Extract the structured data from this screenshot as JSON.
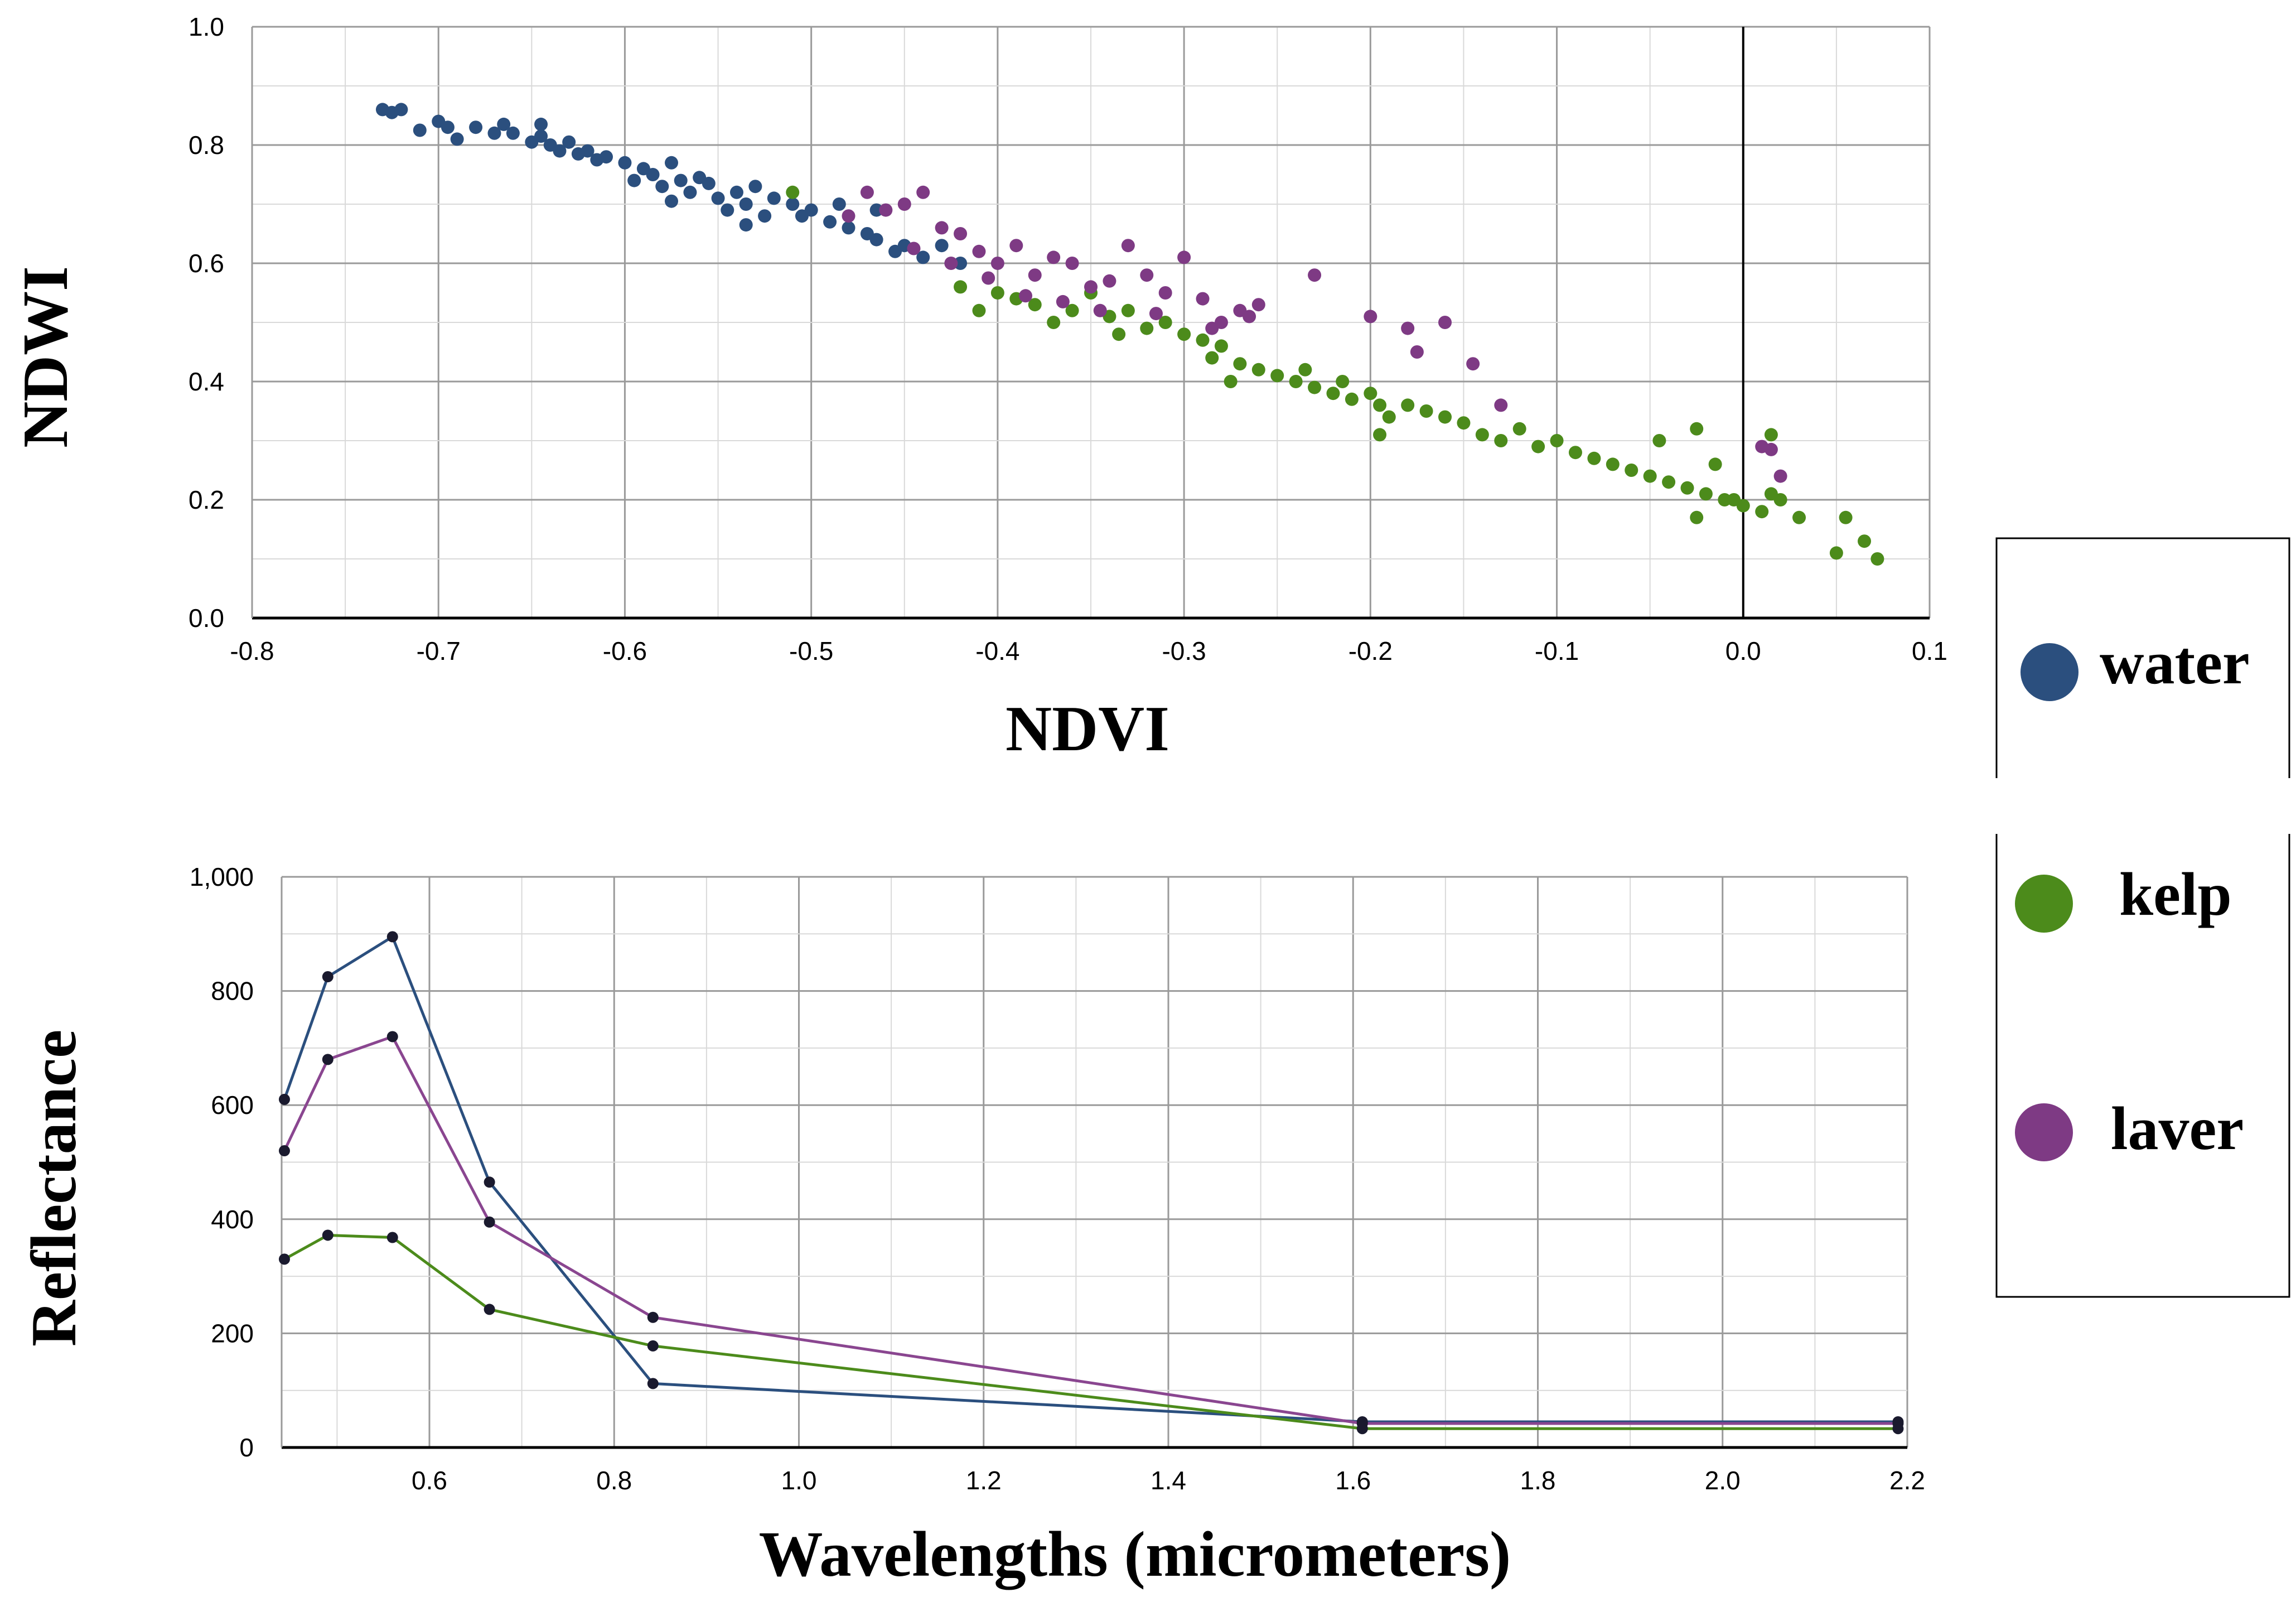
{
  "colors": {
    "water": "#2b4f7e",
    "kelp": "#4c8b1b",
    "laver": "#7e3a84",
    "laver_line": "#8a4690",
    "axis": "#000000",
    "grid_major": "#9a9a9a",
    "grid_minor": "#d9d9d9"
  },
  "legend": {
    "items": [
      {
        "key": "water",
        "label": "water",
        "color": "#2b4f7e"
      },
      {
        "key": "kelp",
        "label": "kelp",
        "color": "#4c8b1b"
      },
      {
        "key": "laver",
        "label": "laver",
        "color": "#7e3a84"
      }
    ]
  },
  "chart_data": [
    {
      "type": "scatter",
      "title": "",
      "xlabel": "NDVI",
      "ylabel": "NDWI",
      "xlim": [
        -0.8,
        0.1
      ],
      "ylim": [
        0.0,
        1.0
      ],
      "xticks": [
        -0.8,
        -0.7,
        -0.6,
        -0.5,
        -0.4,
        -0.3,
        -0.2,
        -0.1,
        0.0,
        0.1
      ],
      "xtick_labels": [
        "-0.8",
        "-0.7",
        "-0.6",
        "-0.5",
        "-0.4",
        "-0.3",
        "-0.2",
        "-0.1",
        "0.0",
        "0.1"
      ],
      "yticks": [
        0.0,
        0.2,
        0.4,
        0.6,
        0.8,
        1.0
      ],
      "ytick_labels": [
        "0.0",
        "0.2",
        "0.4",
        "0.6",
        "0.8",
        "1.0"
      ],
      "grid": true,
      "reference_line_x": 0.0,
      "series": [
        {
          "name": "water",
          "points": [
            [
              -0.73,
              0.86
            ],
            [
              -0.725,
              0.855
            ],
            [
              -0.72,
              0.86
            ],
            [
              -0.71,
              0.825
            ],
            [
              -0.7,
              0.84
            ],
            [
              -0.695,
              0.83
            ],
            [
              -0.69,
              0.81
            ],
            [
              -0.68,
              0.83
            ],
            [
              -0.67,
              0.82
            ],
            [
              -0.665,
              0.835
            ],
            [
              -0.66,
              0.82
            ],
            [
              -0.65,
              0.805
            ],
            [
              -0.645,
              0.815
            ],
            [
              -0.64,
              0.8
            ],
            [
              -0.635,
              0.79
            ],
            [
              -0.63,
              0.805
            ],
            [
              -0.625,
              0.785
            ],
            [
              -0.62,
              0.79
            ],
            [
              -0.615,
              0.775
            ],
            [
              -0.61,
              0.78
            ],
            [
              -0.6,
              0.77
            ],
            [
              -0.595,
              0.74
            ],
            [
              -0.59,
              0.76
            ],
            [
              -0.585,
              0.75
            ],
            [
              -0.58,
              0.73
            ],
            [
              -0.575,
              0.77
            ],
            [
              -0.57,
              0.74
            ],
            [
              -0.565,
              0.72
            ],
            [
              -0.56,
              0.745
            ],
            [
              -0.555,
              0.735
            ],
            [
              -0.55,
              0.71
            ],
            [
              -0.545,
              0.69
            ],
            [
              -0.54,
              0.72
            ],
            [
              -0.535,
              0.7
            ],
            [
              -0.53,
              0.73
            ],
            [
              -0.525,
              0.68
            ],
            [
              -0.52,
              0.71
            ],
            [
              -0.51,
              0.7
            ],
            [
              -0.505,
              0.68
            ],
            [
              -0.5,
              0.69
            ],
            [
              -0.49,
              0.67
            ],
            [
              -0.485,
              0.7
            ],
            [
              -0.48,
              0.66
            ],
            [
              -0.47,
              0.65
            ],
            [
              -0.465,
              0.64
            ],
            [
              -0.455,
              0.62
            ],
            [
              -0.45,
              0.63
            ],
            [
              -0.44,
              0.61
            ],
            [
              -0.43,
              0.63
            ],
            [
              -0.42,
              0.6
            ],
            [
              -0.645,
              0.835
            ],
            [
              -0.575,
              0.705
            ],
            [
              -0.535,
              0.665
            ],
            [
              -0.465,
              0.69
            ]
          ]
        },
        {
          "name": "kelp",
          "points": [
            [
              -0.51,
              0.72
            ],
            [
              -0.42,
              0.56
            ],
            [
              -0.41,
              0.52
            ],
            [
              -0.4,
              0.55
            ],
            [
              -0.39,
              0.54
            ],
            [
              -0.38,
              0.53
            ],
            [
              -0.37,
              0.5
            ],
            [
              -0.36,
              0.52
            ],
            [
              -0.35,
              0.55
            ],
            [
              -0.34,
              0.51
            ],
            [
              -0.33,
              0.52
            ],
            [
              -0.32,
              0.49
            ],
            [
              -0.31,
              0.5
            ],
            [
              -0.3,
              0.48
            ],
            [
              -0.29,
              0.47
            ],
            [
              -0.285,
              0.44
            ],
            [
              -0.28,
              0.46
            ],
            [
              -0.27,
              0.43
            ],
            [
              -0.26,
              0.42
            ],
            [
              -0.25,
              0.41
            ],
            [
              -0.24,
              0.4
            ],
            [
              -0.235,
              0.42
            ],
            [
              -0.23,
              0.39
            ],
            [
              -0.22,
              0.38
            ],
            [
              -0.215,
              0.4
            ],
            [
              -0.21,
              0.37
            ],
            [
              -0.2,
              0.38
            ],
            [
              -0.195,
              0.36
            ],
            [
              -0.19,
              0.34
            ],
            [
              -0.18,
              0.36
            ],
            [
              -0.17,
              0.35
            ],
            [
              -0.16,
              0.34
            ],
            [
              -0.15,
              0.33
            ],
            [
              -0.14,
              0.31
            ],
            [
              -0.13,
              0.3
            ],
            [
              -0.12,
              0.32
            ],
            [
              -0.11,
              0.29
            ],
            [
              -0.1,
              0.3
            ],
            [
              -0.09,
              0.28
            ],
            [
              -0.08,
              0.27
            ],
            [
              -0.07,
              0.26
            ],
            [
              -0.06,
              0.25
            ],
            [
              -0.05,
              0.24
            ],
            [
              -0.04,
              0.23
            ],
            [
              -0.03,
              0.22
            ],
            [
              -0.02,
              0.21
            ],
            [
              -0.01,
              0.2
            ],
            [
              0.0,
              0.19
            ],
            [
              0.01,
              0.18
            ],
            [
              0.015,
              0.21
            ],
            [
              0.02,
              0.2
            ],
            [
              0.03,
              0.17
            ],
            [
              0.05,
              0.11
            ],
            [
              0.055,
              0.17
            ],
            [
              0.065,
              0.13
            ],
            [
              0.072,
              0.1
            ],
            [
              -0.045,
              0.3
            ],
            [
              -0.025,
              0.32
            ],
            [
              -0.015,
              0.26
            ],
            [
              -0.025,
              0.17
            ],
            [
              -0.005,
              0.2
            ],
            [
              0.015,
              0.31
            ],
            [
              -0.195,
              0.31
            ],
            [
              -0.275,
              0.4
            ],
            [
              -0.335,
              0.48
            ]
          ]
        },
        {
          "name": "laver",
          "points": [
            [
              -0.48,
              0.68
            ],
            [
              -0.47,
              0.72
            ],
            [
              -0.46,
              0.69
            ],
            [
              -0.45,
              0.7
            ],
            [
              -0.44,
              0.72
            ],
            [
              -0.43,
              0.66
            ],
            [
              -0.42,
              0.65
            ],
            [
              -0.41,
              0.62
            ],
            [
              -0.4,
              0.6
            ],
            [
              -0.39,
              0.63
            ],
            [
              -0.38,
              0.58
            ],
            [
              -0.37,
              0.61
            ],
            [
              -0.36,
              0.6
            ],
            [
              -0.35,
              0.56
            ],
            [
              -0.34,
              0.57
            ],
            [
              -0.33,
              0.63
            ],
            [
              -0.32,
              0.58
            ],
            [
              -0.31,
              0.55
            ],
            [
              -0.3,
              0.61
            ],
            [
              -0.29,
              0.54
            ],
            [
              -0.28,
              0.5
            ],
            [
              -0.27,
              0.52
            ],
            [
              -0.26,
              0.53
            ],
            [
              -0.23,
              0.58
            ],
            [
              -0.2,
              0.51
            ],
            [
              -0.18,
              0.49
            ],
            [
              -0.175,
              0.45
            ],
            [
              -0.16,
              0.5
            ],
            [
              -0.145,
              0.43
            ],
            [
              -0.13,
              0.36
            ],
            [
              0.01,
              0.29
            ],
            [
              0.015,
              0.285
            ],
            [
              0.02,
              0.24
            ],
            [
              -0.365,
              0.535
            ],
            [
              -0.345,
              0.52
            ],
            [
              -0.315,
              0.515
            ],
            [
              -0.285,
              0.49
            ],
            [
              -0.265,
              0.51
            ],
            [
              -0.405,
              0.575
            ],
            [
              -0.425,
              0.6
            ],
            [
              -0.445,
              0.625
            ],
            [
              -0.385,
              0.545
            ]
          ]
        }
      ]
    },
    {
      "type": "line",
      "title": "",
      "xlabel": "Wavelengths (micrometers)",
      "ylabel": "Reflectance",
      "xlim": [
        0.44,
        2.2
      ],
      "ylim": [
        0,
        1000
      ],
      "xticks": [
        0.6,
        0.8,
        1.0,
        1.2,
        1.4,
        1.6,
        1.8,
        2.0,
        2.2
      ],
      "xtick_labels": [
        "0.6",
        "0.8",
        "1.0",
        "1.2",
        "1.4",
        "1.6",
        "1.8",
        "2.0",
        "2.2"
      ],
      "yticks": [
        0,
        200,
        400,
        600,
        800,
        1000
      ],
      "ytick_labels": [
        "0",
        "200",
        "400",
        "600",
        "800",
        "1,000"
      ],
      "grid": true,
      "x": [
        0.443,
        0.49,
        0.56,
        0.665,
        0.842,
        1.61,
        2.19
      ],
      "series": [
        {
          "name": "water",
          "values": [
            610,
            825,
            895,
            465,
            112,
            45,
            45
          ]
        },
        {
          "name": "laver",
          "values": [
            520,
            680,
            720,
            395,
            228,
            42,
            42
          ]
        },
        {
          "name": "kelp",
          "values": [
            330,
            372,
            368,
            242,
            178,
            33,
            33
          ]
        }
      ]
    }
  ]
}
